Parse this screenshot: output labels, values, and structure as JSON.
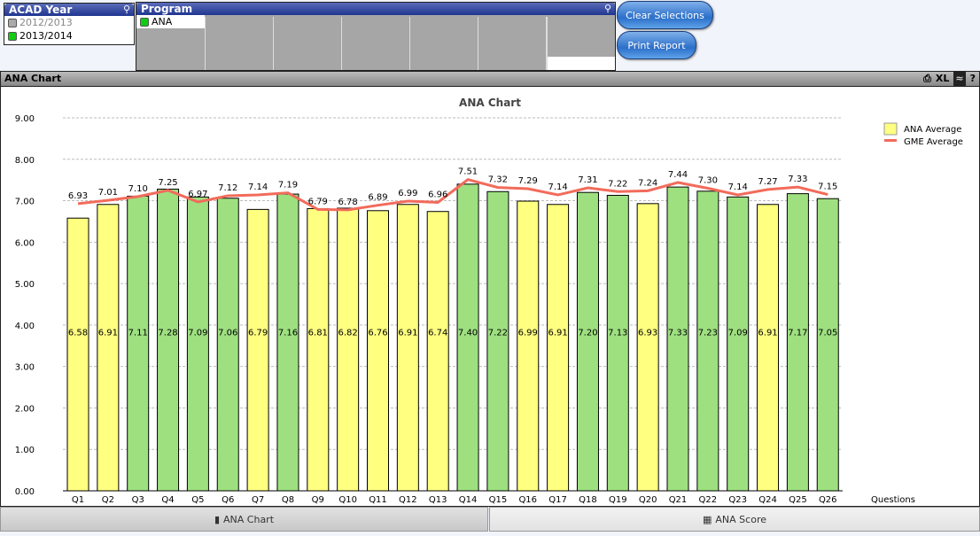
{
  "acad_year": {
    "title": "ACAD Year",
    "items": [
      {
        "label": "2012/2013",
        "state": "excluded"
      },
      {
        "label": "2013/2014",
        "state": "selected"
      }
    ]
  },
  "program": {
    "title": "Program",
    "items": [
      {
        "label": "ANA",
        "state": "selected"
      }
    ]
  },
  "buttons": {
    "clear": "Clear Selections",
    "print": "Print Report"
  },
  "panel": {
    "title": "ANA Chart",
    "icons": [
      "print-icon",
      "xl",
      "chart-icon",
      "help-icon"
    ],
    "xl_label": "XL",
    "help_label": "?"
  },
  "tabs": [
    {
      "label": "ANA Chart"
    },
    {
      "label": "ANA Score"
    }
  ],
  "colors": {
    "green": "#9ee080",
    "yellow": "#ffff80",
    "line": "#f26b5b"
  },
  "chart_data": {
    "type": "bar",
    "title": "ANA Chart",
    "xlabel": "Questions",
    "ylabel": "",
    "ylim": [
      0,
      9
    ],
    "yticks": [
      "0.00",
      "1.00",
      "2.00",
      "3.00",
      "4.00",
      "5.00",
      "6.00",
      "7.00",
      "8.00",
      "9.00"
    ],
    "categories": [
      "Q1",
      "Q2",
      "Q3",
      "Q4",
      "Q5",
      "Q6",
      "Q7",
      "Q8",
      "Q9",
      "Q10",
      "Q11",
      "Q12",
      "Q13",
      "Q14",
      "Q15",
      "Q16",
      "Q17",
      "Q18",
      "Q19",
      "Q20",
      "Q21",
      "Q22",
      "Q23",
      "Q24",
      "Q25",
      "Q26"
    ],
    "series": [
      {
        "name": "ANA Average",
        "kind": "bar",
        "values": [
          6.58,
          6.91,
          7.11,
          7.28,
          7.09,
          7.06,
          6.79,
          7.16,
          6.81,
          6.82,
          6.76,
          6.91,
          6.74,
          7.4,
          7.22,
          6.99,
          6.91,
          7.2,
          7.13,
          6.93,
          7.33,
          7.23,
          7.09,
          6.91,
          7.17,
          7.05
        ],
        "bar_colors": [
          "Y",
          "Y",
          "G",
          "G",
          "G",
          "G",
          "Y",
          "G",
          "Y",
          "Y",
          "Y",
          "Y",
          "Y",
          "G",
          "G",
          "Y",
          "Y",
          "G",
          "G",
          "Y",
          "G",
          "G",
          "G",
          "Y",
          "G",
          "G"
        ]
      },
      {
        "name": "GME Average",
        "kind": "line",
        "values": [
          6.93,
          7.01,
          7.1,
          7.25,
          6.97,
          7.12,
          7.14,
          7.19,
          6.79,
          6.78,
          6.89,
          6.99,
          6.96,
          7.51,
          7.32,
          7.29,
          7.14,
          7.31,
          7.22,
          7.24,
          7.44,
          7.3,
          7.14,
          7.27,
          7.33,
          7.15
        ]
      }
    ],
    "grid": true,
    "legend": "top-right"
  }
}
